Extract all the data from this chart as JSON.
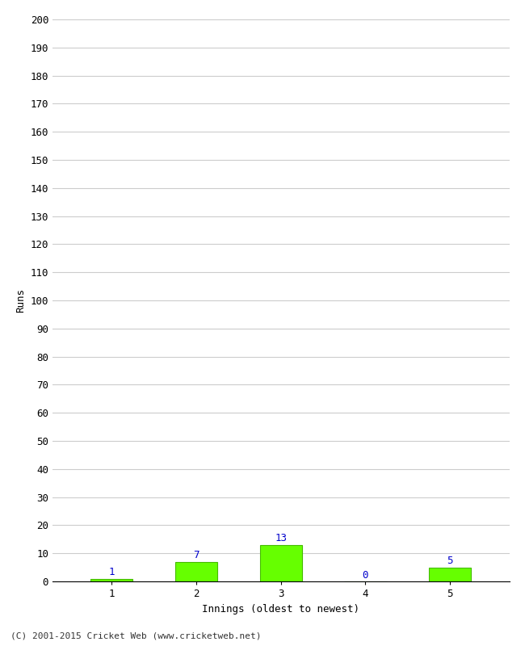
{
  "xlabel": "Innings (oldest to newest)",
  "ylabel": "Runs",
  "categories": [
    1,
    2,
    3,
    4,
    5
  ],
  "values": [
    1,
    7,
    13,
    0,
    5
  ],
  "bar_color": "#66ff00",
  "bar_edge_color": "#44bb00",
  "label_color": "#0000cc",
  "ylim": [
    0,
    200
  ],
  "ytick_step": 10,
  "copyright": "(C) 2001-2015 Cricket Web (www.cricketweb.net)",
  "background_color": "#ffffff",
  "grid_color": "#cccccc",
  "tick_color": "#000000"
}
